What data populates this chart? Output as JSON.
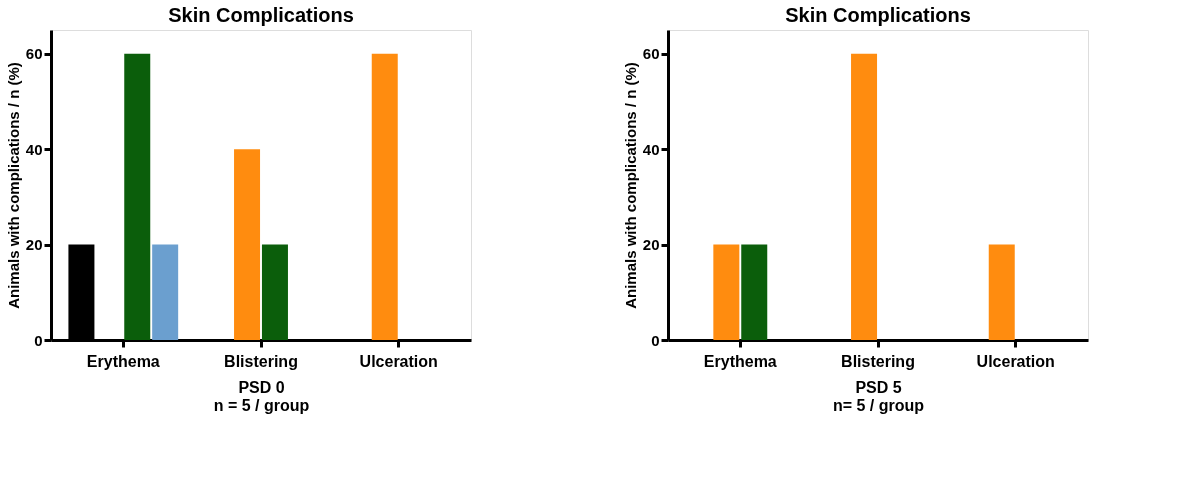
{
  "chart_data": [
    {
      "type": "bar",
      "title": "Skin Complications",
      "xlabel": "PSD 0\nn = 5 / group",
      "ylabel": "Animals with complications / n  (%)",
      "categories": [
        "Erythema",
        "Blistering",
        "Ulceration"
      ],
      "ylim": [
        0,
        65
      ],
      "yticks": [
        0,
        20,
        40,
        60
      ],
      "grid": false,
      "legend": false,
      "series": [
        {
          "color": "#000000",
          "values": [
            20,
            0,
            0
          ]
        },
        {
          "color": "#ff8c0f",
          "values": [
            0,
            40,
            60
          ]
        },
        {
          "color": "#0b5e0b",
          "values": [
            60,
            20,
            0
          ]
        },
        {
          "color": "#6b9fcf",
          "values": [
            20,
            0,
            0
          ]
        }
      ]
    },
    {
      "type": "bar",
      "title": "Skin Complications",
      "xlabel": "PSD 5\nn= 5 / group",
      "ylabel": "Animals with complications / n  (%)",
      "categories": [
        "Erythema",
        "Blistering",
        "Ulceration"
      ],
      "ylim": [
        0,
        65
      ],
      "yticks": [
        0,
        20,
        40,
        60
      ],
      "grid": false,
      "legend": false,
      "series": [
        {
          "color": "#000000",
          "values": [
            0,
            0,
            0
          ]
        },
        {
          "color": "#ff8c0f",
          "values": [
            20,
            60,
            20
          ]
        },
        {
          "color": "#0b5e0b",
          "values": [
            20,
            0,
            0
          ]
        },
        {
          "color": "#6b9fcf",
          "values": [
            0,
            0,
            0
          ]
        }
      ]
    }
  ]
}
